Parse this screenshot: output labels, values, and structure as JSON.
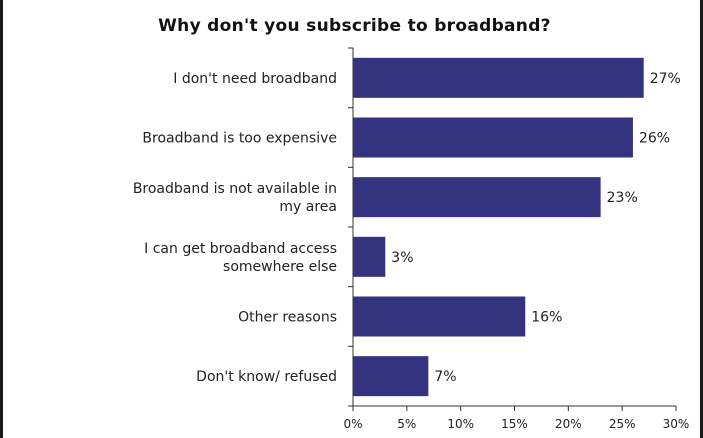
{
  "chart_data": {
    "type": "bar",
    "orientation": "horizontal",
    "title": "Why don't you subscribe to broadband?",
    "categories": [
      [
        "I don't need broadband"
      ],
      [
        "Broadband is too expensive"
      ],
      [
        "Broadband is not available in",
        "my area"
      ],
      [
        "I can get broadband access",
        "somewhere else"
      ],
      [
        "Other reasons"
      ],
      [
        "Don't know/ refused"
      ]
    ],
    "values": [
      27,
      26,
      23,
      3,
      16,
      7
    ],
    "value_labels": [
      "27%",
      "26%",
      "23%",
      "3%",
      "16%",
      "7%"
    ],
    "xlim": [
      0,
      30
    ],
    "x_ticks": [
      0,
      5,
      10,
      15,
      20,
      25,
      30
    ],
    "x_tick_labels": [
      "0%",
      "5%",
      "10%",
      "15%",
      "20%",
      "25%",
      "30%"
    ],
    "bar_color": "#33337f",
    "grid": false,
    "legend": "none"
  }
}
